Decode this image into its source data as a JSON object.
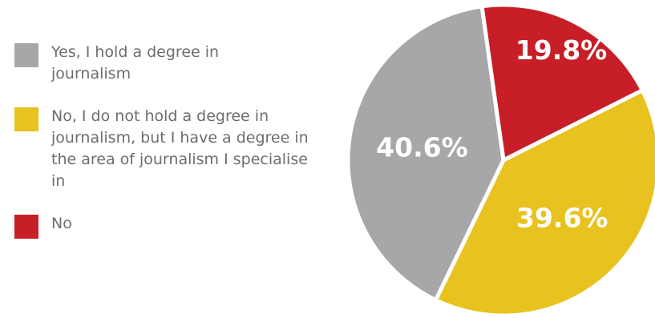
{
  "legend": [
    {
      "label": "Yes, I hold a degree in journalism",
      "color": "#a7a7a9"
    },
    {
      "label": "No, I do not hold a degree in journalism, but I have a degree in the area of journalism I specialise in",
      "color": "#e8c21e"
    },
    {
      "label": "No",
      "color": "#c81e27"
    }
  ],
  "chart_data": {
    "type": "pie",
    "categories": [
      "Yes, I hold a degree in journalism",
      "No, I do not hold a degree in journalism, but I have a degree in the area of journalism I specialise in",
      "No"
    ],
    "values": [
      40.6,
      39.6,
      19.8
    ],
    "data_labels": [
      "40.6%",
      "39.6%",
      "19.8%"
    ],
    "colors": [
      "#a7a7a9",
      "#e8c21e",
      "#c81e27"
    ],
    "legend_placement": "left"
  }
}
